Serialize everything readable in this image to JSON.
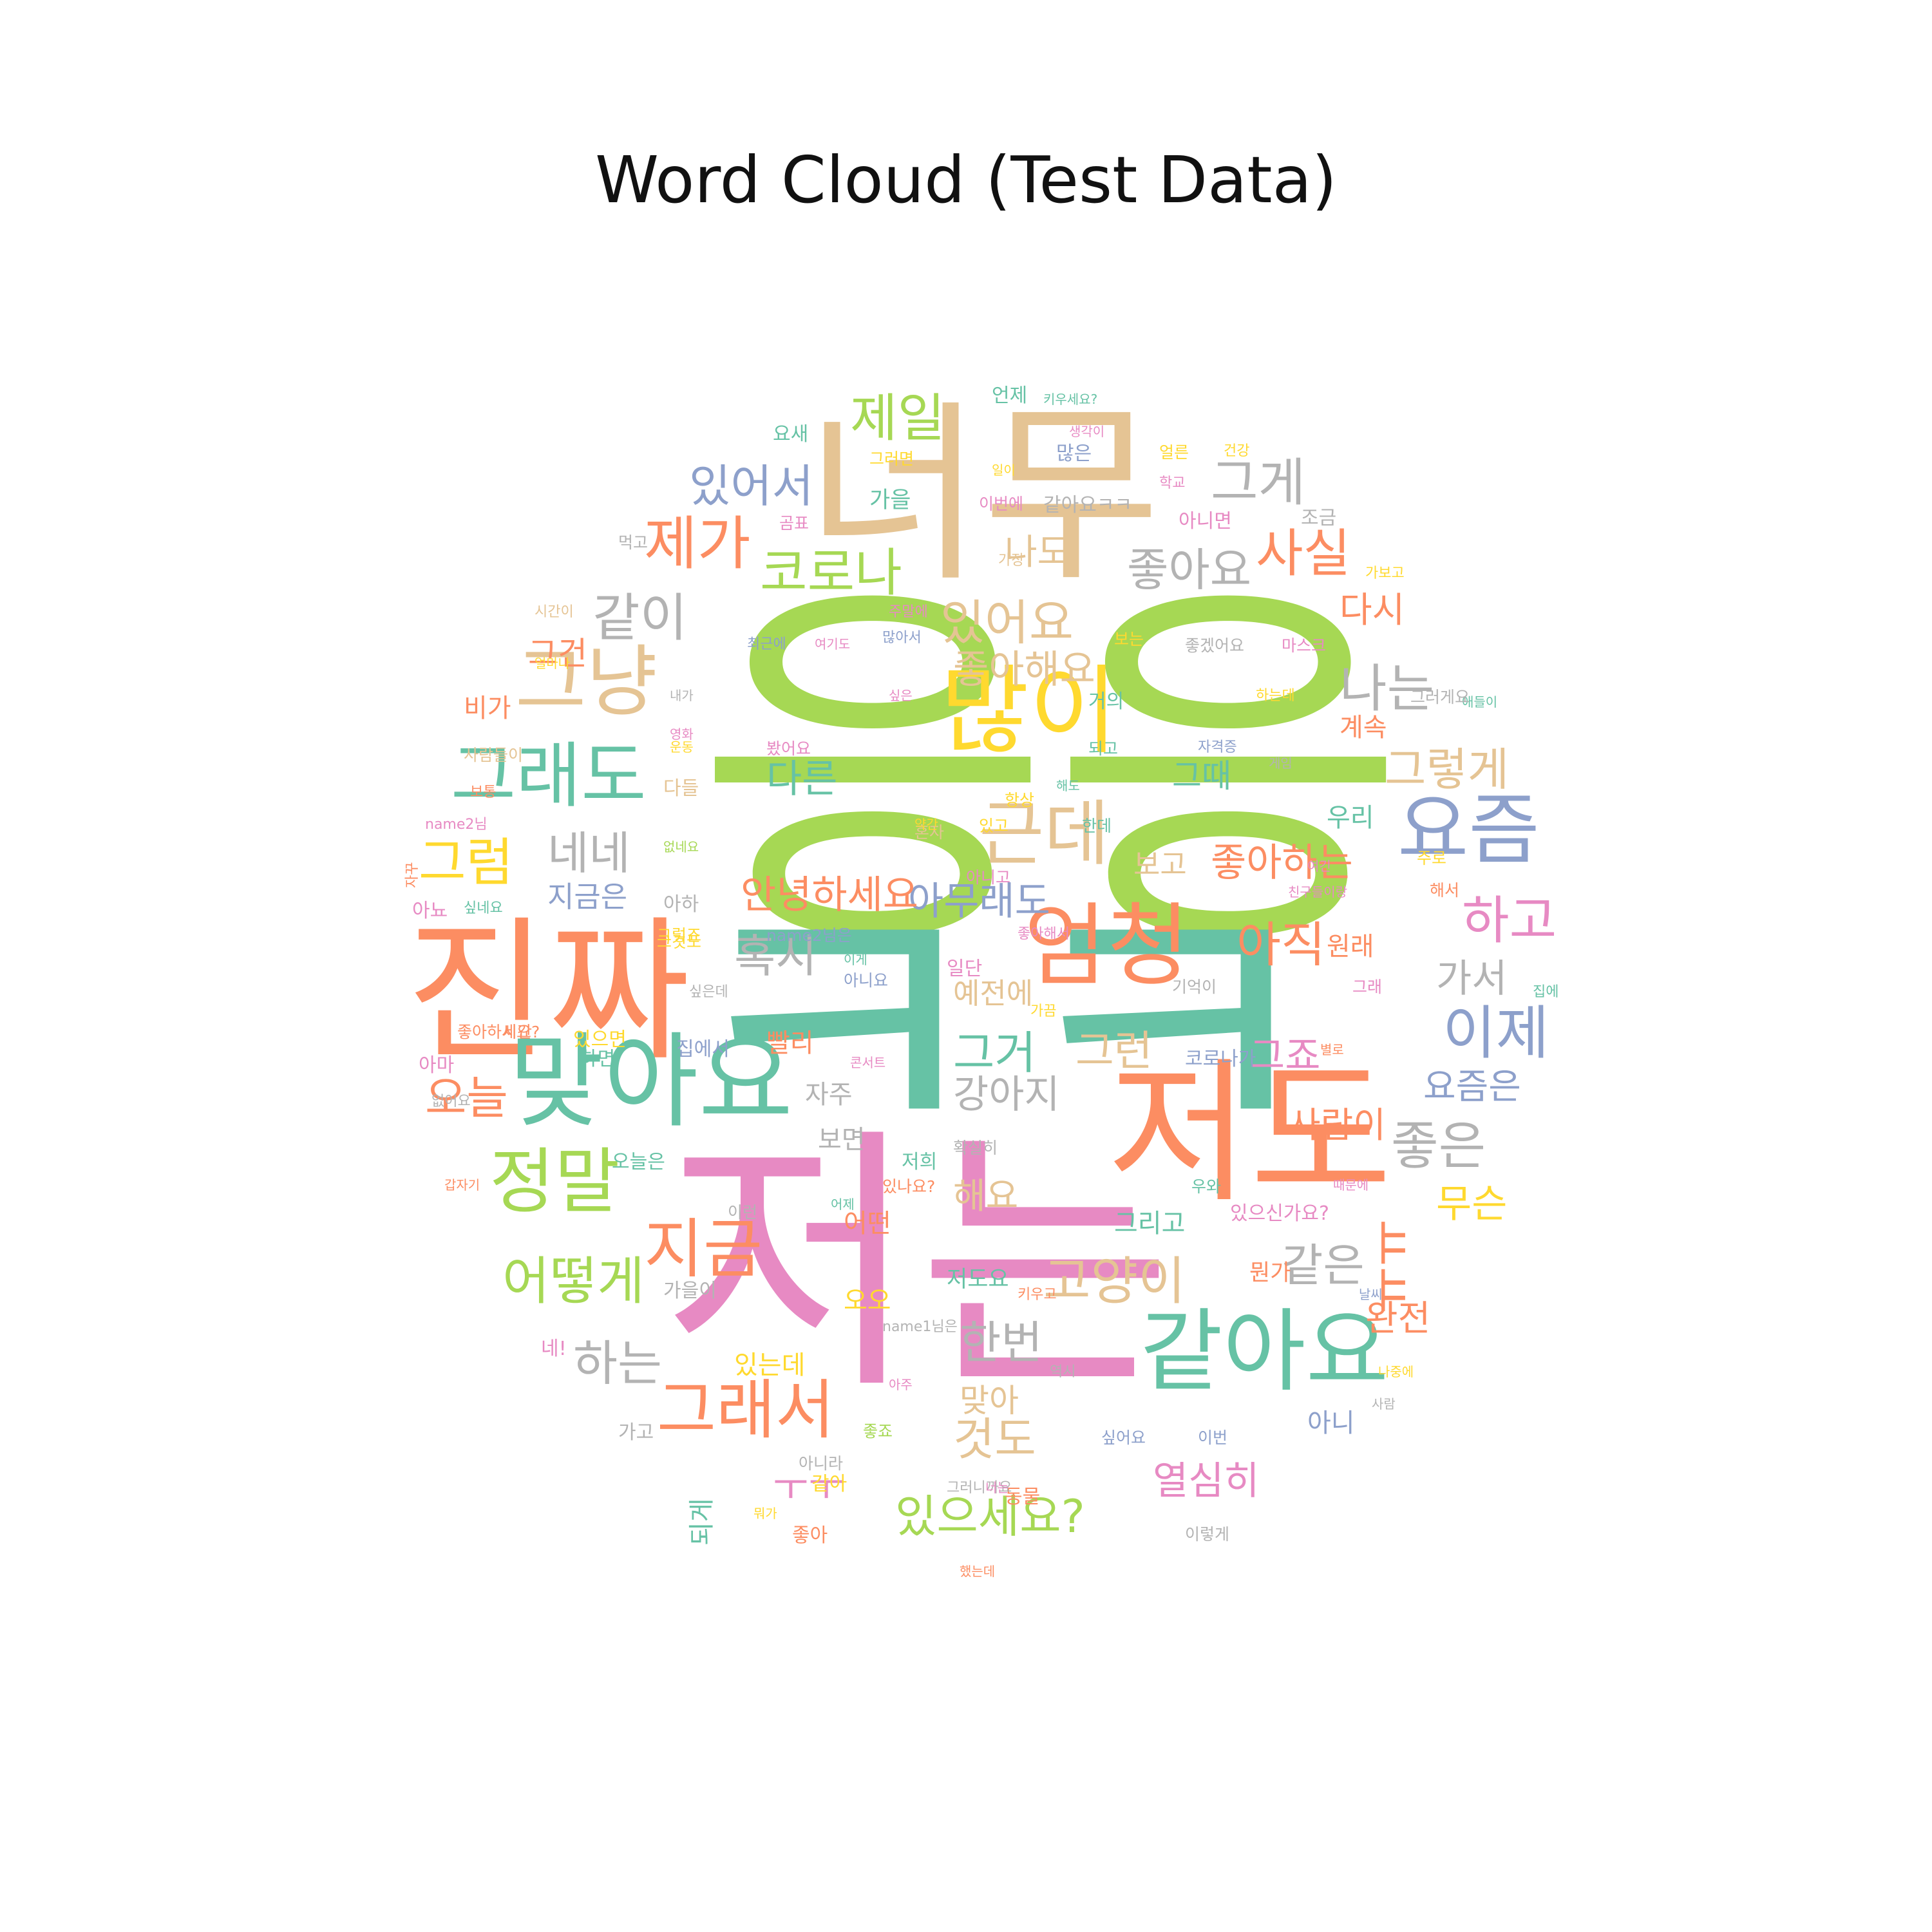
{
  "title": "Word Cloud (Test Data)",
  "palette": {
    "tan": "#e5c494",
    "green": "#a6d854",
    "teal": "#66c2a5",
    "pink": "#e78ac3",
    "orange": "#fc8d62",
    "blue": "#8da0cb",
    "yellow": "#ffd92f",
    "gray": "#b3b3b3"
  },
  "words": [
    {
      "text": "너무",
      "color": "tan"
    },
    {
      "text": "응응",
      "color": "green"
    },
    {
      "text": "ㅋㅋ",
      "color": "teal"
    },
    {
      "text": "저는",
      "color": "pink"
    },
    {
      "text": "진짜",
      "color": "orange"
    },
    {
      "text": "저도",
      "color": "orange"
    },
    {
      "text": "맞아요",
      "color": "teal"
    },
    {
      "text": "많이",
      "color": "yellow"
    },
    {
      "text": "엄청",
      "color": "orange"
    },
    {
      "text": "같아요",
      "color": "teal"
    },
    {
      "text": "요즘",
      "color": "blue"
    },
    {
      "text": "그냥",
      "color": "tan"
    },
    {
      "text": "그래도",
      "color": "teal"
    },
    {
      "text": "근데",
      "color": "tan"
    },
    {
      "text": "정말",
      "color": "green"
    },
    {
      "text": "지금",
      "color": "orange"
    },
    {
      "text": "그래서",
      "color": "orange"
    },
    {
      "text": "제일",
      "color": "green"
    },
    {
      "text": "제가",
      "color": "orange"
    },
    {
      "text": "코로나",
      "color": "green"
    },
    {
      "text": "같이",
      "color": "gray"
    },
    {
      "text": "있어요",
      "color": "tan"
    },
    {
      "text": "그게",
      "color": "gray"
    },
    {
      "text": "사실",
      "color": "orange"
    },
    {
      "text": "있어서",
      "color": "blue"
    },
    {
      "text": "하고",
      "color": "pink"
    },
    {
      "text": "이제",
      "color": "blue"
    },
    {
      "text": "아직",
      "color": "orange"
    },
    {
      "text": "혹시",
      "color": "gray"
    },
    {
      "text": "어떻게",
      "color": "green"
    },
    {
      "text": "고양이",
      "color": "tan"
    },
    {
      "text": "한번",
      "color": "gray"
    },
    {
      "text": "하는",
      "color": "gray"
    },
    {
      "text": "그럼",
      "color": "yellow"
    },
    {
      "text": "오늘",
      "color": "orange"
    },
    {
      "text": "네네",
      "color": "gray"
    },
    {
      "text": "나는",
      "color": "gray"
    },
    {
      "text": "좋아요",
      "color": "gray"
    },
    {
      "text": "그렇게",
      "color": "tan"
    },
    {
      "text": "좋아하는",
      "color": "orange"
    },
    {
      "text": "아무래도",
      "color": "blue"
    },
    {
      "text": "안녕하세요",
      "color": "orange"
    },
    {
      "text": "좋은",
      "color": "gray"
    },
    {
      "text": "ㅠㅠ",
      "color": "orange"
    },
    {
      "text": "무슨",
      "color": "yellow"
    },
    {
      "text": "ㅜㅜ",
      "color": "pink"
    },
    {
      "text": "있으세요?",
      "color": "green"
    },
    {
      "text": "열심히",
      "color": "pink"
    },
    {
      "text": "것도",
      "color": "tan"
    },
    {
      "text": "맞아",
      "color": "tan"
    },
    {
      "text": "그거",
      "color": "teal"
    },
    {
      "text": "그런",
      "color": "tan"
    },
    {
      "text": "강아지",
      "color": "gray"
    },
    {
      "text": "그죠",
      "color": "pink"
    },
    {
      "text": "다시",
      "color": "orange"
    },
    {
      "text": "나도",
      "color": "tan"
    },
    {
      "text": "좋아해요",
      "color": "tan"
    },
    {
      "text": "다른",
      "color": "teal"
    },
    {
      "text": "가서",
      "color": "gray"
    },
    {
      "text": "같은",
      "color": "gray"
    },
    {
      "text": "요즘은",
      "color": "blue"
    },
    {
      "text": "사람이",
      "color": "orange"
    },
    {
      "text": "해요",
      "color": "tan"
    },
    {
      "text": "완전",
      "color": "orange"
    },
    {
      "text": "그건",
      "color": "orange"
    },
    {
      "text": "비가",
      "color": "orange"
    },
    {
      "text": "지금은",
      "color": "blue"
    },
    {
      "text": "계속",
      "color": "orange"
    },
    {
      "text": "그때",
      "color": "teal"
    },
    {
      "text": "보고",
      "color": "tan"
    },
    {
      "text": "우리",
      "color": "teal"
    },
    {
      "text": "원래",
      "color": "orange"
    },
    {
      "text": "예전에",
      "color": "tan"
    },
    {
      "text": "빨리",
      "color": "orange"
    },
    {
      "text": "자주",
      "color": "gray"
    },
    {
      "text": "보면",
      "color": "gray"
    },
    {
      "text": "어떤",
      "color": "orange"
    },
    {
      "text": "오오",
      "color": "yellow"
    },
    {
      "text": "있는데",
      "color": "yellow"
    },
    {
      "text": "되게",
      "color": "teal"
    },
    {
      "text": "그리고",
      "color": "teal"
    },
    {
      "text": "있으신가요?",
      "color": "pink"
    },
    {
      "text": "뭔가",
      "color": "orange"
    },
    {
      "text": "저도요",
      "color": "teal"
    },
    {
      "text": "아니",
      "color": "blue"
    },
    {
      "text": "하면",
      "color": "teal"
    },
    {
      "text": "요새",
      "color": "teal"
    },
    {
      "text": "언제",
      "color": "teal"
    },
    {
      "text": "키우세요?",
      "color": "teal"
    },
    {
      "text": "생각이",
      "color": "pink"
    },
    {
      "text": "그러면",
      "color": "yellow"
    },
    {
      "text": "많은",
      "color": "blue"
    },
    {
      "text": "얼른",
      "color": "yellow"
    },
    {
      "text": "건강",
      "color": "yellow"
    },
    {
      "text": "일이",
      "color": "yellow"
    },
    {
      "text": "학교",
      "color": "pink"
    },
    {
      "text": "가을",
      "color": "teal"
    },
    {
      "text": "이번에",
      "color": "pink"
    },
    {
      "text": "같아요ㅋㅋ",
      "color": "gray"
    },
    {
      "text": "아니면",
      "color": "pink"
    },
    {
      "text": "조금",
      "color": "gray"
    },
    {
      "text": "먹고",
      "color": "gray"
    },
    {
      "text": "곰표",
      "color": "pink"
    },
    {
      "text": "가장",
      "color": "tan"
    },
    {
      "text": "가보고",
      "color": "yellow"
    },
    {
      "text": "시간이",
      "color": "tan"
    },
    {
      "text": "주말에",
      "color": "pink"
    },
    {
      "text": "최근에",
      "color": "blue"
    },
    {
      "text": "여기도",
      "color": "pink"
    },
    {
      "text": "많아서",
      "color": "blue"
    },
    {
      "text": "보는",
      "color": "yellow"
    },
    {
      "text": "좋겠어요",
      "color": "gray"
    },
    {
      "text": "마스크",
      "color": "pink"
    },
    {
      "text": "얼마나",
      "color": "yellow"
    },
    {
      "text": "내가",
      "color": "gray"
    },
    {
      "text": "싶은",
      "color": "pink"
    },
    {
      "text": "거의",
      "color": "teal"
    },
    {
      "text": "하는데",
      "color": "yellow"
    },
    {
      "text": "애들이",
      "color": "teal"
    },
    {
      "text": "그러게요",
      "color": "gray"
    },
    {
      "text": "영화",
      "color": "pink"
    },
    {
      "text": "사람들이",
      "color": "tan"
    },
    {
      "text": "운동",
      "color": "yellow"
    },
    {
      "text": "봤어요",
      "color": "pink"
    },
    {
      "text": "되고",
      "color": "teal"
    },
    {
      "text": "자격증",
      "color": "blue"
    },
    {
      "text": "게임",
      "color": "gray"
    },
    {
      "text": "보통",
      "color": "orange"
    },
    {
      "text": "다들",
      "color": "tan"
    },
    {
      "text": "혼자",
      "color": "tan"
    },
    {
      "text": "해도",
      "color": "teal"
    },
    {
      "text": "항상",
      "color": "yellow"
    },
    {
      "text": "한데",
      "color": "teal"
    },
    {
      "text": "name2님",
      "color": "pink"
    },
    {
      "text": "약간",
      "color": "yellow"
    },
    {
      "text": "있고",
      "color": "yellow"
    },
    {
      "text": "없네요",
      "color": "green"
    },
    {
      "text": "아니고",
      "color": "pink"
    },
    {
      "text": "여긴",
      "color": "pink"
    },
    {
      "text": "주로",
      "color": "yellow"
    },
    {
      "text": "자꾸",
      "color": "orange"
    },
    {
      "text": "아하",
      "color": "gray"
    },
    {
      "text": "친구들이랑",
      "color": "pink"
    },
    {
      "text": "해서",
      "color": "orange"
    },
    {
      "text": "싶네요",
      "color": "teal"
    },
    {
      "text": "그것도",
      "color": "yellow"
    },
    {
      "text": "아뇨",
      "color": "pink"
    },
    {
      "text": "그렇죠",
      "color": "yellow"
    },
    {
      "text": "name2님은",
      "color": "blue"
    },
    {
      "text": "좋아해서",
      "color": "pink"
    },
    {
      "text": "이게",
      "color": "teal"
    },
    {
      "text": "일단",
      "color": "pink"
    },
    {
      "text": "아니요",
      "color": "blue"
    },
    {
      "text": "그래",
      "color": "pink"
    },
    {
      "text": "기억이",
      "color": "gray"
    },
    {
      "text": "싶은데",
      "color": "gray"
    },
    {
      "text": "집에",
      "color": "teal"
    },
    {
      "text": "가끔",
      "color": "yellow"
    },
    {
      "text": "좋아하세요?",
      "color": "orange"
    },
    {
      "text": "시간",
      "color": "orange"
    },
    {
      "text": "있으면",
      "color": "yellow"
    },
    {
      "text": "집에서",
      "color": "blue"
    },
    {
      "text": "코로나가",
      "color": "blue"
    },
    {
      "text": "별로",
      "color": "orange"
    },
    {
      "text": "콘서트",
      "color": "pink"
    },
    {
      "text": "아마",
      "color": "pink"
    },
    {
      "text": "없어요",
      "color": "gray"
    },
    {
      "text": "오늘은",
      "color": "teal"
    },
    {
      "text": "확실히",
      "color": "gray"
    },
    {
      "text": "있나요?",
      "color": "orange"
    },
    {
      "text": "저희",
      "color": "teal"
    },
    {
      "text": "우와",
      "color": "teal"
    },
    {
      "text": "때문에",
      "color": "pink"
    },
    {
      "text": "갑자기",
      "color": "orange"
    },
    {
      "text": "어제",
      "color": "teal"
    },
    {
      "text": "이런",
      "color": "gray"
    },
    {
      "text": "가을이",
      "color": "gray"
    },
    {
      "text": "키우고",
      "color": "orange"
    },
    {
      "text": "날씨",
      "color": "blue"
    },
    {
      "text": "네!",
      "color": "pink"
    },
    {
      "text": "name1님은",
      "color": "gray"
    },
    {
      "text": "역시",
      "color": "gray"
    },
    {
      "text": "나중에",
      "color": "yellow"
    },
    {
      "text": "사람",
      "color": "gray"
    },
    {
      "text": "아주",
      "color": "pink"
    },
    {
      "text": "좋죠",
      "color": "green"
    },
    {
      "text": "가고",
      "color": "gray"
    },
    {
      "text": "싶어요",
      "color": "blue"
    },
    {
      "text": "이번",
      "color": "blue"
    },
    {
      "text": "아니라",
      "color": "gray"
    },
    {
      "text": "같아",
      "color": "yellow"
    },
    {
      "text": "동물",
      "color": "orange"
    },
    {
      "text": "그러니까요",
      "color": "gray"
    },
    {
      "text": "너는",
      "color": "pink"
    },
    {
      "text": "뭐가",
      "color": "yellow"
    },
    {
      "text": "좋아",
      "color": "orange"
    },
    {
      "text": "이렇게",
      "color": "gray"
    },
    {
      "text": "했는데",
      "color": "orange"
    },
    {
      "text": "기억에",
      "color": "gray"
    }
  ]
}
